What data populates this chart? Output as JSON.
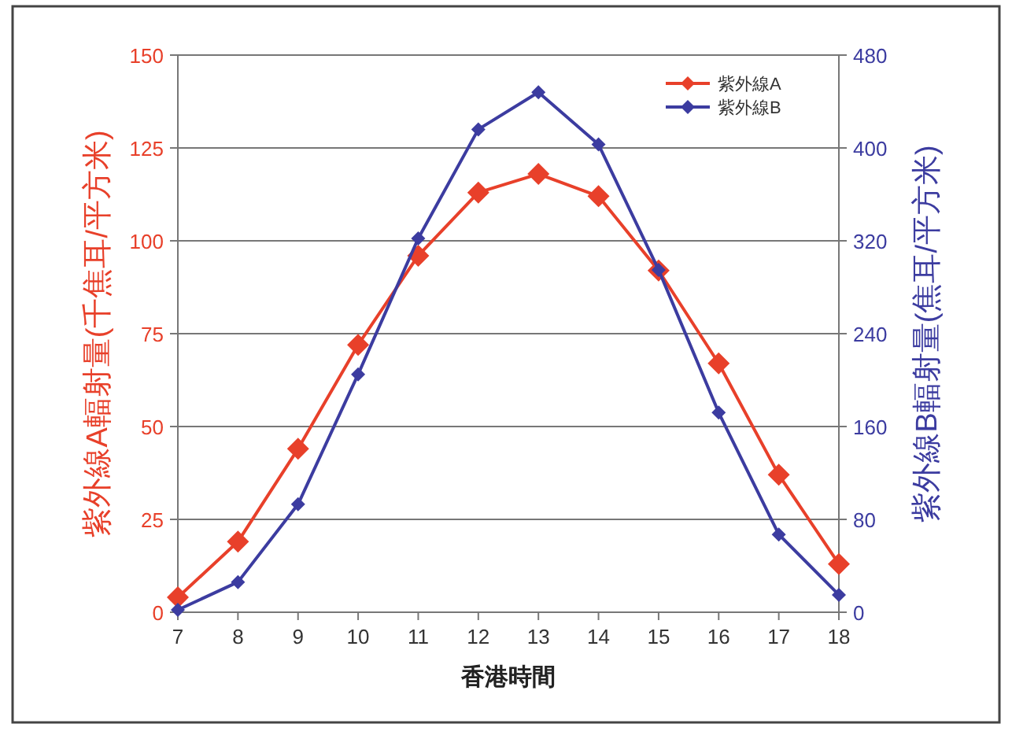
{
  "chart_data": {
    "type": "line",
    "xlabel": "香港時間",
    "ylabel": "紫外線A輻射量(千焦耳/平方米)",
    "y2label": "紫外線B輻射量(焦耳/平方米)",
    "x": [
      7,
      8,
      9,
      10,
      11,
      12,
      13,
      14,
      15,
      16,
      17,
      18
    ],
    "xlim": [
      7,
      18
    ],
    "xticks": [
      7,
      8,
      9,
      10,
      11,
      12,
      13,
      14,
      15,
      16,
      17,
      18
    ],
    "ylim": [
      0,
      150
    ],
    "yticks": [
      0,
      25,
      50,
      75,
      100,
      125,
      150
    ],
    "y2lim": [
      0,
      480
    ],
    "y2ticks": [
      0,
      80,
      160,
      240,
      320,
      400,
      480
    ],
    "grid": "y",
    "legend": "top right",
    "marker": "diamond",
    "line_style": "solid",
    "series": [
      {
        "name": "紫外線A",
        "color": "#e8402a",
        "values": [
          4,
          19,
          44,
          72,
          96,
          113,
          118,
          112,
          92,
          67,
          37,
          13
        ]
      },
      {
        "name": "紫外線B",
        "color": "#3c3ca0",
        "axis": "y2",
        "values": [
          2,
          26,
          93,
          205,
          322,
          416,
          448,
          403,
          295,
          172,
          67,
          15
        ]
      }
    ]
  }
}
